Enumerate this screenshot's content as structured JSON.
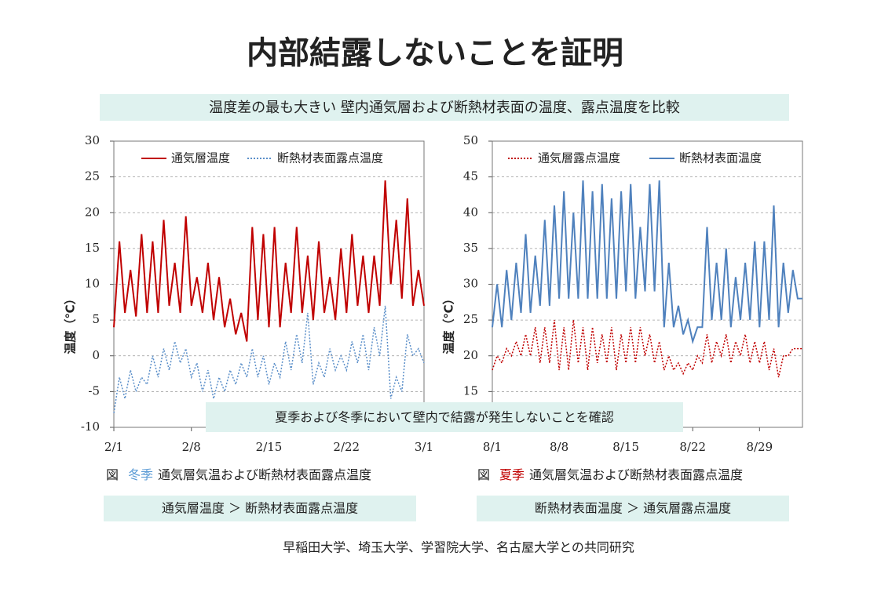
{
  "title": "内部結露しないことを証明",
  "subtitle": "温度差の最も大きい 壁内通気層および断熱材表面の温度、露点温度を比較",
  "note": "夏季および冬季において壁内で結露が発生しないことを確認",
  "footer": "早稲田大学、埼玉大学、学習院大学、名古屋大学との共同研究",
  "captions": [
    {
      "prefix": "図",
      "season": "冬季",
      "season_color": "#5b9bd5",
      "text": "通気層気温および断熱材表面露点温度"
    },
    {
      "prefix": "図",
      "season": "夏季",
      "season_color": "#c00000",
      "text": "通気層気温および断熱材表面露点温度"
    }
  ],
  "comparisons": [
    "通気層温度 ＞ 断熱材表面露点温度",
    "断熱材表面温度 ＞ 通気層露点温度"
  ],
  "chart_data": [
    {
      "type": "line",
      "ylabel": "温度（℃）",
      "ylim": [
        -10,
        30
      ],
      "yticks": [
        30,
        25,
        20,
        15,
        10,
        5,
        0,
        -5,
        -10
      ],
      "xlim": [
        0,
        28
      ],
      "xticks": [
        {
          "value": 0,
          "label": "2/1"
        },
        {
          "value": 7,
          "label": "2/8"
        },
        {
          "value": 14,
          "label": "2/15"
        },
        {
          "value": 21,
          "label": "2/22"
        },
        {
          "value": 28,
          "label": "3/1"
        }
      ],
      "grid": true,
      "x": [
        0,
        0.5,
        1,
        1.5,
        2,
        2.5,
        3,
        3.5,
        4,
        4.5,
        5,
        5.5,
        6,
        6.5,
        7,
        7.5,
        8,
        8.5,
        9,
        9.5,
        10,
        10.5,
        11,
        11.5,
        12,
        12.5,
        13,
        13.5,
        14,
        14.5,
        15,
        15.5,
        16,
        16.5,
        17,
        17.5,
        18,
        18.5,
        19,
        19.5,
        20,
        20.5,
        21,
        21.5,
        22,
        22.5,
        23,
        23.5,
        24,
        24.5,
        25,
        25.5,
        26,
        26.5,
        27,
        27.5,
        28
      ],
      "series": [
        {
          "name": "通気層温度",
          "color": "#c00000",
          "style": "solid",
          "values": [
            4,
            16,
            6,
            12,
            5.5,
            17,
            6,
            16,
            6,
            19,
            7,
            13,
            6,
            19.5,
            7,
            11,
            6,
            13,
            5,
            11,
            4,
            8,
            3,
            6,
            2,
            18,
            5,
            17,
            4,
            18,
            4,
            13,
            6,
            18,
            6,
            14,
            5,
            16,
            6,
            11,
            5,
            15,
            6,
            17,
            7,
            14,
            6,
            14,
            7,
            24.5,
            10,
            19,
            8,
            22,
            7,
            12,
            7
          ]
        },
        {
          "name": "断熱材表面露点温度",
          "color": "#5b8fc9",
          "style": "dotted",
          "values": [
            -8,
            -3,
            -6,
            -2,
            -5,
            -3,
            -4,
            0,
            -3,
            1,
            -2,
            2,
            -1,
            1,
            -3,
            -1,
            -5,
            -2,
            -6,
            -3,
            -5,
            -2,
            -4,
            -1,
            -3,
            1,
            -3,
            0,
            -4,
            -1,
            -3,
            2,
            -2,
            3,
            -1,
            6,
            -4,
            -1,
            -3,
            1,
            -2,
            0,
            -2,
            2,
            -1,
            3,
            -2,
            4,
            0,
            7,
            -6,
            -3,
            -5,
            3,
            0,
            1,
            -1
          ]
        }
      ]
    },
    {
      "type": "line",
      "ylabel": "温度（℃）",
      "ylim": [
        10,
        50
      ],
      "yticks": [
        50,
        45,
        40,
        35,
        30,
        25,
        20,
        15,
        10
      ],
      "xlim": [
        0,
        32.5
      ],
      "xticks": [
        {
          "value": 0,
          "label": "8/1"
        },
        {
          "value": 7,
          "label": "8/8"
        },
        {
          "value": 14,
          "label": "8/15"
        },
        {
          "value": 21,
          "label": "8/22"
        },
        {
          "value": 28,
          "label": "8/29"
        }
      ],
      "grid": true,
      "x": [
        0,
        0.5,
        1,
        1.5,
        2,
        2.5,
        3,
        3.5,
        4,
        4.5,
        5,
        5.5,
        6,
        6.5,
        7,
        7.5,
        8,
        8.5,
        9,
        9.5,
        10,
        10.5,
        11,
        11.5,
        12,
        12.5,
        13,
        13.5,
        14,
        14.5,
        15,
        15.5,
        16,
        16.5,
        17,
        17.5,
        18,
        18.5,
        19,
        19.5,
        20,
        20.5,
        21,
        21.5,
        22,
        22.5,
        23,
        23.5,
        24,
        24.5,
        25,
        25.5,
        26,
        26.5,
        27,
        27.5,
        28,
        28.5,
        29,
        29.5,
        30,
        30.5,
        31,
        31.5,
        32,
        32.5
      ],
      "series": [
        {
          "name": "通気層露点温度",
          "color": "#c00000",
          "style": "dotted",
          "values": [
            18,
            20,
            19,
            21,
            20,
            22,
            20,
            23,
            20,
            24,
            19,
            24,
            19,
            25,
            18,
            24,
            18,
            25,
            19,
            24,
            18,
            24,
            19,
            23,
            19,
            24,
            18,
            23,
            19,
            24,
            19,
            24,
            20,
            23,
            19,
            22,
            18,
            20,
            18,
            19,
            17.5,
            19,
            18,
            20,
            19,
            23,
            19,
            22,
            20,
            23,
            19,
            22,
            20,
            23,
            19,
            22,
            19,
            22,
            18,
            21,
            17,
            20,
            20,
            21,
            21,
            21
          ]
        },
        {
          "name": "断熱材表面温度",
          "color": "#4f81bd",
          "style": "solid",
          "values": [
            24,
            30,
            24,
            32,
            25,
            33,
            26,
            37,
            26,
            34,
            27,
            39,
            27,
            41,
            28,
            43,
            28,
            40,
            28,
            44.5,
            28,
            43,
            28,
            44,
            28,
            42,
            28,
            43,
            29,
            44,
            28,
            38,
            29,
            44,
            29,
            44.5,
            24,
            33,
            24,
            27,
            23,
            25,
            22,
            24,
            24,
            38,
            25,
            33,
            25,
            35,
            24,
            31,
            25,
            33,
            25,
            36,
            24,
            36,
            25,
            41,
            24,
            33,
            26,
            32,
            28,
            28
          ]
        }
      ]
    }
  ]
}
